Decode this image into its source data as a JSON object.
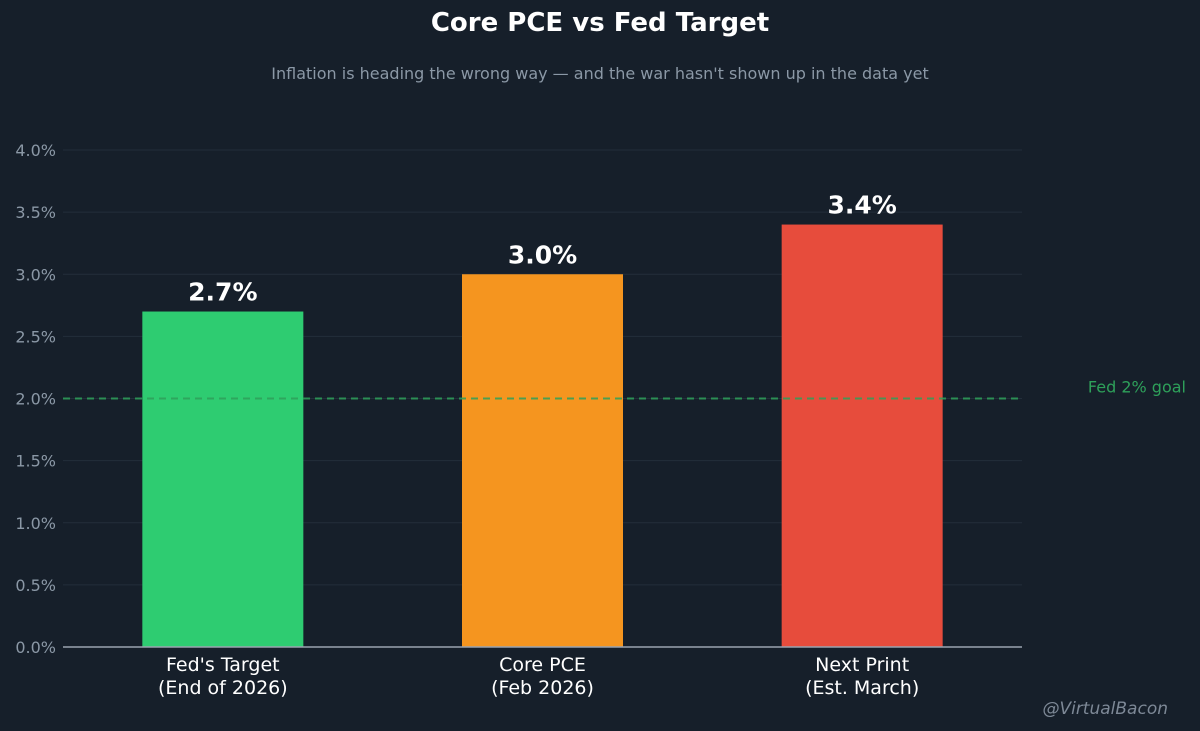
{
  "header": {
    "title": "Core PCE vs Fed Target",
    "subtitle": "Inflation is heading the wrong way — and the war hasn't shown up in the data yet"
  },
  "watermark": "@VirtualBacon",
  "chart_data": {
    "type": "bar",
    "categories": [
      [
        "Fed's Target",
        "(End of 2026)"
      ],
      [
        "Core PCE",
        "(Feb 2026)"
      ],
      [
        "Next Print",
        "(Est. March)"
      ]
    ],
    "values": [
      2.7,
      3.0,
      3.4
    ],
    "value_labels": [
      "2.7%",
      "3.0%",
      "3.4%"
    ],
    "bar_colors": [
      "#2ecc71",
      "#f5951f",
      "#e74c3c"
    ],
    "ylim": [
      0,
      4.0
    ],
    "yticks": [
      0.0,
      0.5,
      1.0,
      1.5,
      2.0,
      2.5,
      3.0,
      3.5,
      4.0
    ],
    "ytick_labels": [
      "0.0%",
      "0.5%",
      "1.0%",
      "1.5%",
      "2.0%",
      "2.5%",
      "3.0%",
      "3.5%",
      "4.0%"
    ],
    "grid": true,
    "reference_line": {
      "value": 2.0,
      "label": "Fed 2% goal",
      "color": "#2ea05a"
    }
  }
}
